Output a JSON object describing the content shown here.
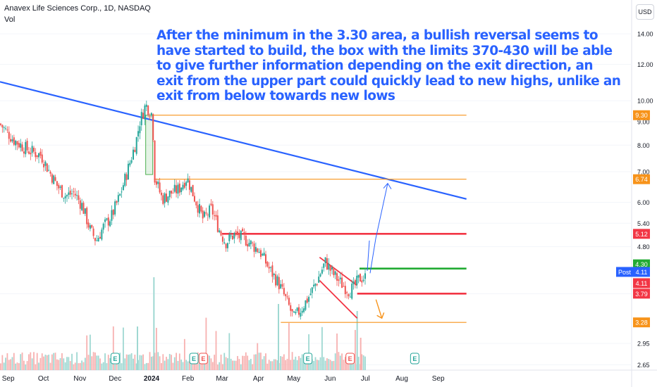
{
  "header": {
    "title": "Anavex Life Sciences Corp., 1D, NASDAQ",
    "volume_label": "Vol",
    "currency": "USD"
  },
  "annotation": "After the minimum in the 3.30 area, a bullish reversal seems to have started to build, the box with the limits 370-430 will be able to give further information depending on the exit direction, an exit from the upper part could quickly lead to new highs, unlike an exit from below towards new lows",
  "colors": {
    "up": "#26a69a",
    "down": "#ef5350",
    "volume_up": "#9fd8d2",
    "volume_down": "#f7b1b0",
    "trendline": "#2962ff",
    "level_orange": "#f7931a",
    "level_red": "#f23645",
    "level_green": "#22ab33",
    "post_blue": "#2962ff",
    "grid": "#f0f3fa"
  },
  "chart_data": {
    "type": "candlestick",
    "symbol": "Anavex Life Sciences Corp.",
    "interval": "1D",
    "exchange": "NASDAQ",
    "x_labels": [
      "Sep",
      "Oct",
      "Nov",
      "Dec",
      "2024",
      "Feb",
      "Mar",
      "Apr",
      "May",
      "Jun",
      "Jul",
      "Aug",
      "Sep"
    ],
    "y_ticks": [
      "14.00",
      "12.00",
      "10.00",
      "9.00",
      "8.00",
      "7.00",
      "6.00",
      "5.40",
      "4.80",
      "3.79",
      "2.95",
      "2.65"
    ],
    "y_scale": "log",
    "ylim": [
      2.58,
      16.6
    ],
    "price_path": [
      [
        "2023-08-25",
        8.9
      ],
      [
        "2023-09-06",
        8.2
      ],
      [
        "2023-09-18",
        7.8
      ],
      [
        "2023-09-29",
        7.6
      ],
      [
        "2023-10-06",
        7.0
      ],
      [
        "2023-10-13",
        6.5
      ],
      [
        "2023-10-20",
        6.2
      ],
      [
        "2023-10-27",
        6.3
      ],
      [
        "2023-11-03",
        5.9
      ],
      [
        "2023-11-10",
        5.2
      ],
      [
        "2023-11-15",
        4.95
      ],
      [
        "2023-11-21",
        5.3
      ],
      [
        "2023-11-28",
        5.6
      ],
      [
        "2023-12-05",
        6.2
      ],
      [
        "2023-12-12",
        7.1
      ],
      [
        "2023-12-19",
        8.2
      ],
      [
        "2023-12-22",
        9.0
      ],
      [
        "2023-12-27",
        9.8
      ],
      [
        "2024-01-02",
        9.3
      ],
      [
        "2024-01-03",
        6.9
      ],
      [
        "2024-01-10",
        6.1
      ],
      [
        "2024-01-18",
        6.3
      ],
      [
        "2024-01-24",
        6.4
      ],
      [
        "2024-01-31",
        6.8
      ],
      [
        "2024-02-07",
        6.1
      ],
      [
        "2024-02-14",
        5.5
      ],
      [
        "2024-02-21",
        5.8
      ],
      [
        "2024-02-28",
        5.2
      ],
      [
        "2024-03-04",
        4.9
      ],
      [
        "2024-03-11",
        5.1
      ],
      [
        "2024-03-20",
        5.0
      ],
      [
        "2024-04-02",
        4.7
      ],
      [
        "2024-04-10",
        4.3
      ],
      [
        "2024-04-18",
        4.0
      ],
      [
        "2024-04-26",
        3.6
      ],
      [
        "2024-05-01",
        3.35
      ],
      [
        "2024-05-07",
        3.5
      ],
      [
        "2024-05-13",
        3.7
      ],
      [
        "2024-05-20",
        4.0
      ],
      [
        "2024-05-28",
        4.45
      ],
      [
        "2024-06-03",
        4.2
      ],
      [
        "2024-06-10",
        4.0
      ],
      [
        "2024-06-17",
        3.85
      ],
      [
        "2024-06-21",
        3.9
      ],
      [
        "2024-06-26",
        4.1
      ],
      [
        "2024-07-01",
        4.11
      ]
    ],
    "boxes": [
      {
        "from": "2023-12-27",
        "to": "2024-01-02",
        "low": 6.9,
        "high": 9.3
      }
    ],
    "price_labels": [
      {
        "value": 9.3,
        "text": "9.30",
        "color": "#f7931a"
      },
      {
        "value": 6.74,
        "text": "6.74",
        "color": "#f7931a"
      },
      {
        "value": 5.12,
        "text": "5.12",
        "color": "#f23645"
      },
      {
        "value": 4.3,
        "text": "4.30",
        "color": "#22ab33"
      },
      {
        "value": 4.11,
        "text": "4.11",
        "color": "#2962ff",
        "tag": "Post"
      },
      {
        "value": 4.11,
        "text": "4.11",
        "color": "#f23645"
      },
      {
        "value": 3.79,
        "text": "3.79",
        "color": "#f23645"
      },
      {
        "value": 3.28,
        "text": "3.28",
        "color": "#f7931a"
      }
    ],
    "drawn_lines": [
      {
        "name": "descending-trendline",
        "from": [
          "2023-08-25",
          11.0
        ],
        "to": [
          "2024-09-25",
          6.1
        ],
        "color": "#2962ff"
      },
      {
        "name": "level-9-30",
        "from": [
          "2024-01-02",
          9.3
        ],
        "to": [
          "2024-09-25",
          9.3
        ],
        "color": "#f7931a"
      },
      {
        "name": "level-6-74",
        "from": [
          "2024-01-03",
          6.74
        ],
        "to": [
          "2024-09-25",
          6.74
        ],
        "color": "#f7931a"
      },
      {
        "name": "level-5-12",
        "from": [
          "2024-03-01",
          5.12
        ],
        "to": [
          "2024-09-25",
          5.12
        ],
        "color": "#f23645"
      },
      {
        "name": "level-4-30",
        "from": [
          "2024-06-26",
          4.3
        ],
        "to": [
          "2024-09-25",
          4.3
        ],
        "color": "#22ab33"
      },
      {
        "name": "level-3-79",
        "from": [
          "2024-06-24",
          3.79
        ],
        "to": [
          "2024-09-25",
          3.79
        ],
        "color": "#f23645"
      },
      {
        "name": "level-3-28",
        "from": [
          "2024-04-20",
          3.28
        ],
        "to": [
          "2024-09-25",
          3.28
        ],
        "color": "#f7931a"
      },
      {
        "name": "channel-upper",
        "from": [
          "2024-05-23",
          4.55
        ],
        "to": [
          "2024-06-24",
          3.95
        ],
        "color": "#f23645"
      },
      {
        "name": "channel-lower",
        "from": [
          "2024-05-23",
          4.05
        ],
        "to": [
          "2024-06-24",
          3.35
        ],
        "color": "#f23645"
      }
    ],
    "earnings_markers": [
      "2023-12-01",
      "2024-02-06",
      "2024-05-13",
      "2024-08-12"
    ],
    "dividend_markers": [
      "2024-02-14",
      "2024-06-18"
    ],
    "grid": false
  }
}
